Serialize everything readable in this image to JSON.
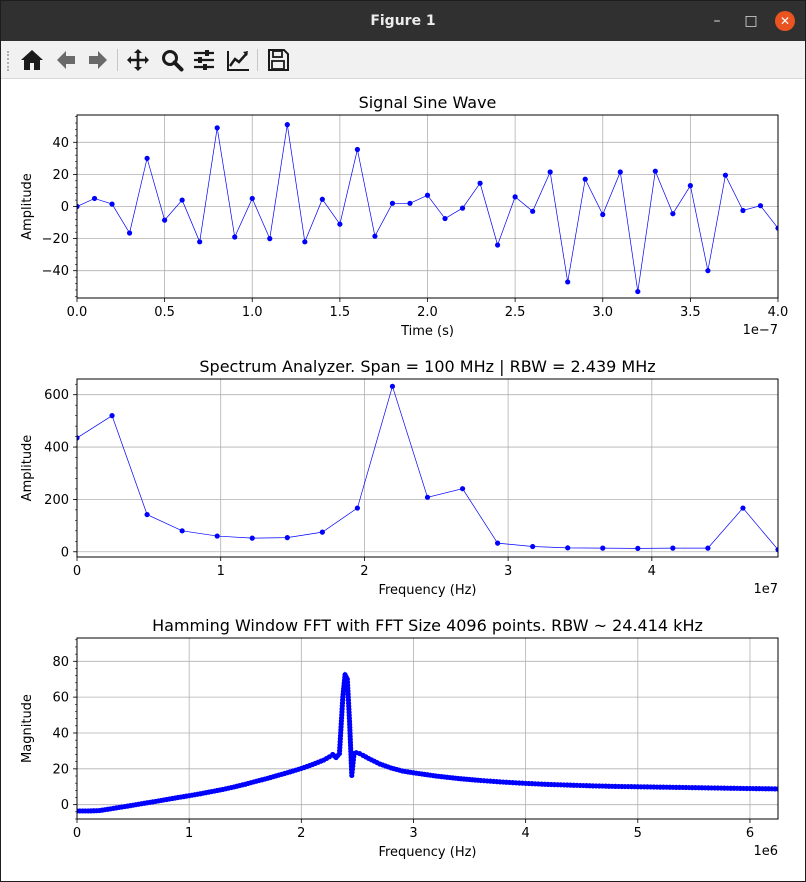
{
  "window": {
    "title": "Figure 1"
  },
  "toolbar": {
    "tools": [
      {
        "name": "home-icon"
      },
      {
        "name": "back-arrow-icon"
      },
      {
        "name": "forward-arrow-icon"
      },
      {
        "name": "pan-icon"
      },
      {
        "name": "zoom-icon"
      },
      {
        "name": "configure-subplots-icon"
      },
      {
        "name": "edit-axis-icon"
      },
      {
        "name": "save-icon"
      }
    ]
  },
  "style": {
    "line_color": "#0000ff",
    "grid_color": "#b0b0b0"
  },
  "chart_data": [
    {
      "type": "line",
      "title": "Signal Sine Wave",
      "xlabel": "Time (s)",
      "ylabel": "Amplitude",
      "offset_text": "1e−7",
      "xlim": [
        0,
        4.0
      ],
      "ylim": [
        -57,
        57
      ],
      "xticks": [
        0,
        0.5,
        1.0,
        1.5,
        2.0,
        2.5,
        3.0,
        3.5,
        4.0
      ],
      "xtick_labels": [
        "0.0",
        "0.5",
        "1.0",
        "1.5",
        "2.0",
        "2.5",
        "3.0",
        "3.5",
        "4.0"
      ],
      "yticks": [
        -40,
        -20,
        0,
        20,
        40
      ],
      "ytick_labels": [
        "−40",
        "−20",
        "0",
        "20",
        "40"
      ],
      "grid": true,
      "x": [
        0,
        0.1,
        0.2,
        0.3,
        0.4,
        0.5,
        0.6,
        0.7,
        0.8,
        0.9,
        1.0,
        1.1,
        1.2,
        1.3,
        1.4,
        1.5,
        1.6,
        1.7,
        1.8,
        1.9,
        2.0,
        2.1,
        2.2,
        2.3,
        2.4,
        2.5,
        2.6,
        2.7,
        2.8,
        2.9,
        3.0,
        3.1,
        3.2,
        3.3,
        3.4,
        3.5,
        3.6,
        3.7,
        3.8,
        3.9,
        4.0
      ],
      "y": [
        0,
        5,
        1.5,
        -16.5,
        30,
        -8.5,
        4,
        -22,
        49,
        -19,
        5,
        -20,
        51,
        -22,
        4.5,
        -11,
        35.5,
        -18.5,
        2,
        2,
        7,
        -7.5,
        -1,
        14.5,
        -24,
        6,
        -3,
        21.5,
        -47,
        17,
        -5,
        21.5,
        -53,
        22,
        -4.5,
        13,
        -40,
        19.5,
        -2.5,
        0.5,
        -13.5
      ]
    },
    {
      "type": "line",
      "title": "Spectrum Analyzer. Span = 100 MHz | RBW = 2.439 MHz",
      "xlabel": "Frequency (Hz)",
      "ylabel": "Amplitude",
      "offset_text": "1e7",
      "xlim": [
        0,
        4.878
      ],
      "ylim": [
        -20,
        660
      ],
      "xticks": [
        0,
        1,
        2,
        3,
        4
      ],
      "xtick_labels": [
        "0",
        "1",
        "2",
        "3",
        "4"
      ],
      "yticks": [
        0,
        200,
        400,
        600
      ],
      "ytick_labels": [
        "0",
        "200",
        "400",
        "600"
      ],
      "grid": true,
      "x": [
        0,
        0.2439,
        0.4878,
        0.7317,
        0.9756,
        1.2195,
        1.4634,
        1.7073,
        1.9512,
        2.1951,
        2.439,
        2.6829,
        2.9268,
        3.1707,
        3.4146,
        3.6585,
        3.9024,
        4.1463,
        4.3902,
        4.6341,
        4.878
      ],
      "y": [
        435,
        520,
        142,
        80,
        60,
        52,
        54,
        75,
        167,
        632,
        208,
        241,
        33,
        20,
        15,
        14,
        13,
        14,
        14,
        167,
        8
      ]
    },
    {
      "type": "line",
      "title": "Hamming Window FFT with FFT Size 4096 points. RBW ~ 24.414 kHz",
      "xlabel": "Frequency (Hz)",
      "ylabel": "Magnitude",
      "offset_text": "1e6",
      "xlim": [
        0,
        6.25
      ],
      "ylim": [
        -8,
        93
      ],
      "xticks": [
        0,
        1,
        2,
        3,
        4,
        5,
        6
      ],
      "xtick_labels": [
        "0",
        "1",
        "2",
        "3",
        "4",
        "5",
        "6"
      ],
      "yticks": [
        0,
        20,
        40,
        60,
        80
      ],
      "ytick_labels": [
        "0",
        "20",
        "40",
        "60",
        "80"
      ],
      "grid": true,
      "x": [
        0,
        0.1,
        0.2,
        0.3,
        0.4,
        0.5,
        0.6,
        0.7,
        0.8,
        0.9,
        1.0,
        1.1,
        1.2,
        1.3,
        1.4,
        1.5,
        1.6,
        1.7,
        1.8,
        1.9,
        2.0,
        2.1,
        2.2,
        2.25,
        2.28,
        2.31,
        2.34,
        2.37,
        2.39,
        2.41,
        2.43,
        2.45,
        2.47,
        2.49,
        2.52,
        2.55,
        2.6,
        2.7,
        2.8,
        2.9,
        3.0,
        3.2,
        3.4,
        3.6,
        3.8,
        4.0,
        4.2,
        4.4,
        4.6,
        4.8,
        5.0,
        5.2,
        5.4,
        5.6,
        5.8,
        6.0,
        6.25
      ],
      "y": [
        -3.5,
        -3.5,
        -3.3,
        -2.3,
        -1.3,
        -0.3,
        0.8,
        1.8,
        2.9,
        4.0,
        5.0,
        6.1,
        7.3,
        8.5,
        9.9,
        11.4,
        13.1,
        14.7,
        16.5,
        18.3,
        20.2,
        22.4,
        24.9,
        26.7,
        28.0,
        26.3,
        28.5,
        60.0,
        72.5,
        70.0,
        46.5,
        16.3,
        28.5,
        29.0,
        28.5,
        27.5,
        25.8,
        22.7,
        20.5,
        18.8,
        17.8,
        16.0,
        14.6,
        13.5,
        12.6,
        11.9,
        11.3,
        10.9,
        10.5,
        10.2,
        10.0,
        9.8,
        9.6,
        9.4,
        9.2,
        9.0,
        8.8
      ],
      "dense": true
    }
  ]
}
